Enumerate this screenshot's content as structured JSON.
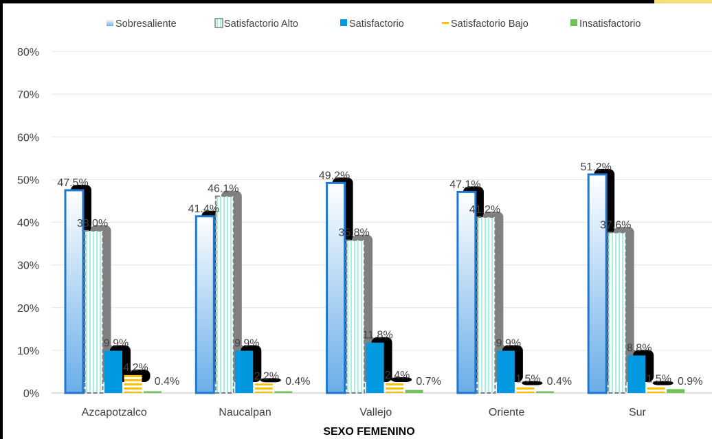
{
  "chart_data": {
    "type": "bar",
    "title": "",
    "xlabel": "SEXO FEMENINO",
    "ylabel": "",
    "ylim": [
      0,
      0.8
    ],
    "yticks": [
      0,
      0.1,
      0.2,
      0.3,
      0.4,
      0.5,
      0.6,
      0.7,
      0.8
    ],
    "ytick_labels": [
      "0%",
      "10%",
      "20%",
      "30%",
      "40%",
      "50%",
      "60%",
      "70%",
      "80%"
    ],
    "grid": true,
    "legend_position": "top",
    "categories": [
      "Azcapotzalco",
      "Naucalpan",
      "Vallejo",
      "Oriente",
      "Sur"
    ],
    "series": [
      {
        "name": "Sobresaliente",
        "color": "#1f77d0",
        "values": [
          0.475,
          0.414,
          0.492,
          0.471,
          0.512
        ],
        "labels": [
          "47.5%",
          "41.4%",
          "49.2%",
          "47.1%",
          "51.2%"
        ]
      },
      {
        "name": "Satisfactorio Alto",
        "color": "#b8f5e6",
        "values": [
          0.38,
          0.461,
          0.358,
          0.412,
          0.376
        ],
        "labels": [
          "38.0%",
          "46.1%",
          "35.8%",
          "41.2%",
          "37.6%"
        ]
      },
      {
        "name": "Satisfactorio",
        "color": "#0099e0",
        "values": [
          0.099,
          0.099,
          0.118,
          0.099,
          0.088
        ],
        "labels": [
          "9.9%",
          "9.9%",
          "11.8%",
          "9.9%",
          "8.8%"
        ]
      },
      {
        "name": "Satisfactorio Bajo",
        "color": "#ffc000",
        "values": [
          0.042,
          0.022,
          0.024,
          0.015,
          0.015
        ],
        "labels": [
          "4.2%",
          "2.2%",
          "2.4%",
          "1.5%",
          "1.5%"
        ]
      },
      {
        "name": "Insatisfactorio",
        "color": "#70c15a",
        "values": [
          0.004,
          0.004,
          0.007,
          0.004,
          0.009
        ],
        "labels": [
          "0.4%",
          "0.4%",
          "0.7%",
          "0.4%",
          "0.9%"
        ]
      }
    ]
  }
}
